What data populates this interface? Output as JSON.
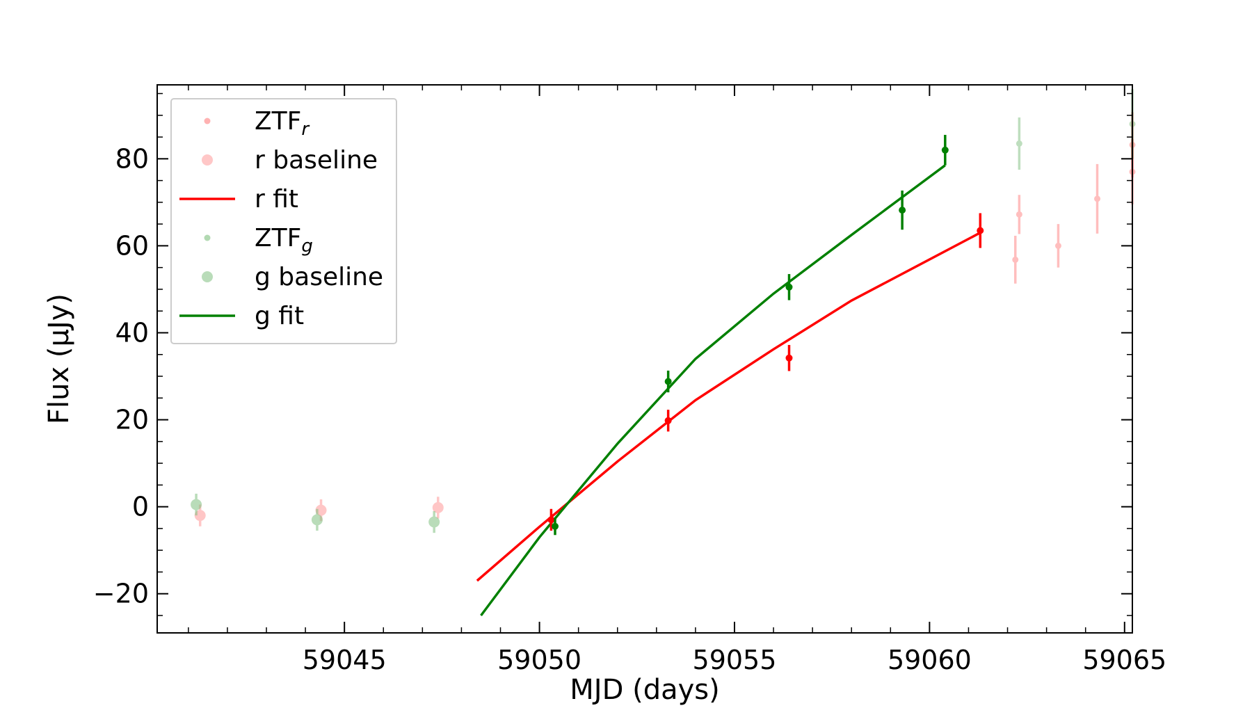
{
  "chart_data": {
    "type": "scatter",
    "title": "",
    "xlabel": "MJD (days)",
    "ylabel": "Flux (μJy)",
    "xlim": [
      59040.2,
      59065.2
    ],
    "ylim": [
      -29,
      97
    ],
    "xticks_major": [
      59045,
      59050,
      59055,
      59060,
      59065
    ],
    "yticks_major": [
      -20,
      0,
      20,
      40,
      60,
      80
    ],
    "xtick_labels": [
      "59045",
      "59050",
      "59055",
      "59060",
      "59065"
    ],
    "ytick_labels": [
      "−20",
      "0",
      "20",
      "40",
      "60",
      "80"
    ],
    "grid": false,
    "legend_position": "top-left",
    "colors": {
      "r": "#ff0000",
      "g": "#008000",
      "r_faint": "#ff9999",
      "g_faint": "#80c080"
    },
    "series": [
      {
        "name": "ZTF_r",
        "label_base": "ZTF",
        "label_sub": "r",
        "kind": "points",
        "color": "#ff0000",
        "points": [
          {
            "x": 59050.3,
            "y": -3.0,
            "err": 2.5
          },
          {
            "x": 59053.3,
            "y": 19.8,
            "err": 2.5
          },
          {
            "x": 59056.4,
            "y": 34.2,
            "err": 3.0
          },
          {
            "x": 59061.3,
            "y": 63.5,
            "err": 4.0
          }
        ],
        "faint_points": [
          {
            "x": 59062.2,
            "y": 56.8,
            "err": 5.5
          },
          {
            "x": 59062.3,
            "y": 67.2,
            "err": 4.5
          },
          {
            "x": 59063.3,
            "y": 60.0,
            "err": 5.0
          },
          {
            "x": 59064.3,
            "y": 70.8,
            "err": 8.0
          },
          {
            "x": 59065.2,
            "y": 83.2,
            "err": 7.5
          },
          {
            "x": 59065.2,
            "y": 77.0,
            "err": 7.5
          }
        ]
      },
      {
        "name": "r baseline",
        "label_base": "r baseline",
        "kind": "baseline",
        "color": "#ff9999",
        "points": [
          {
            "x": 59041.3,
            "y": -2.0,
            "err": 2.5
          },
          {
            "x": 59044.4,
            "y": -0.8,
            "err": 2.5
          },
          {
            "x": 59047.4,
            "y": -0.2,
            "err": 2.5
          }
        ]
      },
      {
        "name": "r fit",
        "label_base": "r fit",
        "kind": "line",
        "color": "#ff0000",
        "line": [
          {
            "x": 59048.4,
            "y": -17
          },
          {
            "x": 59050,
            "y": -4.6
          },
          {
            "x": 59052,
            "y": 10.4
          },
          {
            "x": 59054,
            "y": 24.5
          },
          {
            "x": 59056,
            "y": 36.2
          },
          {
            "x": 59058,
            "y": 47.4
          },
          {
            "x": 59061.3,
            "y": 63.0
          }
        ]
      },
      {
        "name": "ZTF_g",
        "label_base": "ZTF",
        "label_sub": "g",
        "kind": "points",
        "color": "#008000",
        "points": [
          {
            "x": 59050.4,
            "y": -4.5,
            "err": 2.0
          },
          {
            "x": 59053.3,
            "y": 28.8,
            "err": 2.5
          },
          {
            "x": 59056.4,
            "y": 50.5,
            "err": 3.0
          },
          {
            "x": 59059.3,
            "y": 68.2,
            "err": 4.5
          },
          {
            "x": 59060.4,
            "y": 82.0,
            "err": 3.5
          }
        ],
        "faint_points": [
          {
            "x": 59062.3,
            "y": 83.5,
            "err": 6.0
          },
          {
            "x": 59065.2,
            "y": 88.0,
            "err": 8.0
          }
        ]
      },
      {
        "name": "g baseline",
        "label_base": "g baseline",
        "kind": "baseline",
        "color": "#80c080",
        "points": [
          {
            "x": 59041.2,
            "y": 0.5,
            "err": 2.5
          },
          {
            "x": 59044.3,
            "y": -3.0,
            "err": 2.5
          },
          {
            "x": 59047.3,
            "y": -3.5,
            "err": 2.5
          }
        ]
      },
      {
        "name": "g fit",
        "label_base": "g fit",
        "kind": "line",
        "color": "#008000",
        "line": [
          {
            "x": 59048.5,
            "y": -25
          },
          {
            "x": 59050,
            "y": -7.0
          },
          {
            "x": 59052,
            "y": 14.5
          },
          {
            "x": 59054,
            "y": 34.0
          },
          {
            "x": 59056,
            "y": 49.0
          },
          {
            "x": 59058,
            "y": 62.5
          },
          {
            "x": 59060.4,
            "y": 78.5
          }
        ]
      }
    ]
  }
}
